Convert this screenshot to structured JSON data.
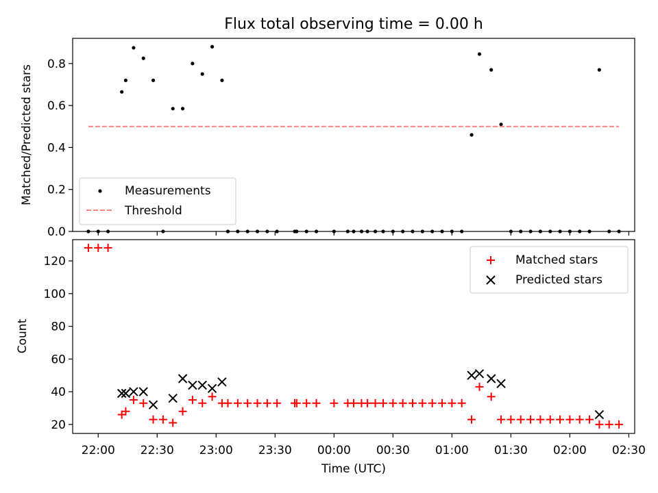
{
  "figure": {
    "title": "Flux total observing time = 0.00 h"
  },
  "chart_data": [
    {
      "type": "scatter",
      "panel": "top",
      "ylabel": "Matched/Predicted stars",
      "xlabel": "",
      "ylim": [
        0,
        0.92
      ],
      "yticks": [
        0.0,
        0.2,
        0.4,
        0.6,
        0.8
      ],
      "ytick_labels": [
        "0.0",
        "0.2",
        "0.4",
        "0.6",
        "0.8"
      ],
      "xticks": [
        "22:00",
        "22:30",
        "23:00",
        "23:30",
        "00:00",
        "00:30",
        "01:00",
        "01:30",
        "02:00",
        "02:30"
      ],
      "xlim": [
        "21:47",
        "02:33"
      ],
      "legend": {
        "placement": "lower-left",
        "entries": [
          "Measurements",
          "Threshold"
        ]
      },
      "series": [
        {
          "name": "Measurements",
          "marker": "dot",
          "color": "#000000",
          "x": [
            "21:55",
            "22:00",
            "22:05",
            "22:12",
            "22:14",
            "22:18",
            "22:23",
            "22:28",
            "22:33",
            "22:38",
            "22:43",
            "22:48",
            "22:53",
            "22:58",
            "23:03",
            "23:06",
            "23:11",
            "23:16",
            "23:21",
            "23:26",
            "23:31",
            "23:40",
            "23:41",
            "23:46",
            "23:51",
            "24:00",
            "24:07",
            "24:10",
            "24:14",
            "24:17",
            "24:21",
            "24:25",
            "24:30",
            "24:35",
            "24:40",
            "24:45",
            "24:50",
            "24:55",
            "25:00",
            "25:05",
            "25:10",
            "25:14",
            "25:20",
            "25:25",
            "25:30",
            "25:35",
            "25:40",
            "25:45",
            "25:50",
            "25:55",
            "26:00",
            "26:05",
            "26:10",
            "26:15",
            "26:20",
            "26:25"
          ],
          "y": [
            0,
            0,
            0,
            0.665,
            0.72,
            0.875,
            0.825,
            0.72,
            0,
            0.585,
            0.585,
            0.8,
            0.75,
            0.88,
            0.72,
            0,
            0,
            0,
            0,
            0,
            0,
            0,
            0,
            0,
            0,
            0,
            0,
            0,
            0,
            0,
            0,
            0,
            0,
            0,
            0,
            0,
            0,
            0,
            0,
            0,
            0.46,
            0.845,
            0.77,
            0.51,
            0,
            0,
            0,
            0,
            0,
            0,
            0,
            0,
            0,
            0.77,
            0,
            0
          ]
        },
        {
          "name": "Threshold",
          "style": "dashed",
          "color": "#ff8080",
          "x": [
            "21:55",
            "26:25"
          ],
          "y": [
            0.5,
            0.5
          ]
        }
      ]
    },
    {
      "type": "scatter",
      "panel": "bottom",
      "ylabel": "Count",
      "xlabel": "Time (UTC)",
      "ylim": [
        14.5,
        133
      ],
      "yticks": [
        20,
        40,
        60,
        80,
        100,
        120
      ],
      "ytick_labels": [
        "20",
        "40",
        "60",
        "80",
        "100",
        "120"
      ],
      "xticks": [
        "22:00",
        "22:30",
        "23:00",
        "23:30",
        "00:00",
        "00:30",
        "01:00",
        "01:30",
        "02:00",
        "02:30"
      ],
      "xlim": [
        "21:47",
        "02:33"
      ],
      "legend": {
        "placement": "top-right",
        "entries": [
          "Matched stars",
          "Predicted stars"
        ]
      },
      "series": [
        {
          "name": "Matched stars",
          "marker": "plus",
          "color": "#ff0000",
          "x": [
            "21:55",
            "22:00",
            "22:05",
            "22:12",
            "22:14",
            "22:18",
            "22:23",
            "22:28",
            "22:33",
            "22:38",
            "22:43",
            "22:48",
            "22:53",
            "22:58",
            "23:03",
            "23:06",
            "23:11",
            "23:16",
            "23:21",
            "23:26",
            "23:31",
            "23:40",
            "23:41",
            "23:46",
            "23:51",
            "24:00",
            "24:07",
            "24:10",
            "24:14",
            "24:17",
            "24:21",
            "24:25",
            "24:30",
            "24:35",
            "24:40",
            "24:45",
            "24:50",
            "24:55",
            "25:00",
            "25:05",
            "25:10",
            "25:14",
            "25:20",
            "25:25",
            "25:30",
            "25:35",
            "25:40",
            "25:45",
            "25:50",
            "25:55",
            "26:00",
            "26:05",
            "26:10",
            "26:15",
            "26:20",
            "26:25"
          ],
          "y": [
            128,
            128,
            128,
            26,
            28,
            35,
            33,
            23,
            23,
            21,
            28,
            35,
            33,
            37,
            33,
            33,
            33,
            33,
            33,
            33,
            33,
            33,
            33,
            33,
            33,
            33,
            33,
            33,
            33,
            33,
            33,
            33,
            33,
            33,
            33,
            33,
            33,
            33,
            33,
            33,
            23,
            43,
            37,
            23,
            23,
            23,
            23,
            23,
            23,
            23,
            23,
            23,
            23,
            20,
            20,
            20
          ]
        },
        {
          "name": "Predicted stars",
          "marker": "x",
          "color": "#000000",
          "x": [
            "22:12",
            "22:14",
            "22:18",
            "22:23",
            "22:28",
            "22:38",
            "22:43",
            "22:48",
            "22:53",
            "22:58",
            "23:03",
            "25:10",
            "25:14",
            "25:20",
            "25:25",
            "26:15"
          ],
          "y": [
            39,
            39,
            40,
            40,
            32,
            36,
            48,
            44,
            44,
            42,
            46,
            50,
            51,
            48,
            45,
            26
          ]
        }
      ]
    }
  ]
}
